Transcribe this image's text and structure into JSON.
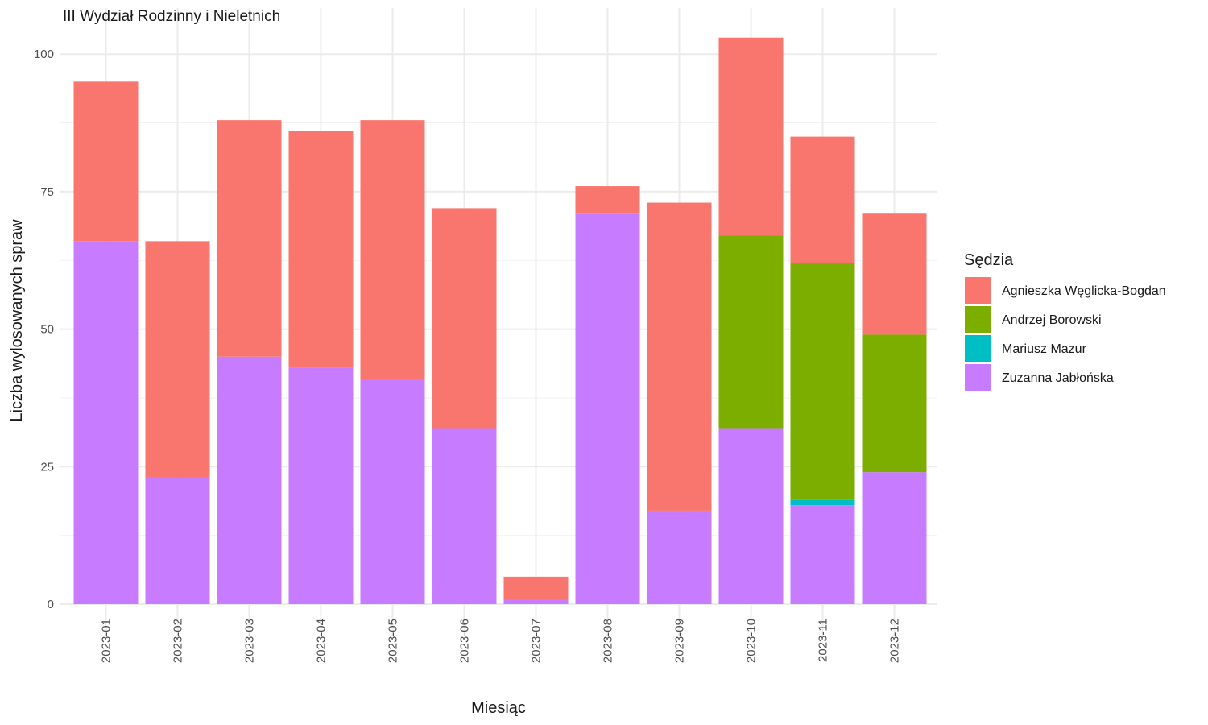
{
  "chart_data": {
    "type": "bar",
    "stacked": true,
    "title": "III Wydział Rodzinny i Nieletnich",
    "xlabel": "Miesiąc",
    "ylabel": "Liczba wylosowanych spraw",
    "ylim": [
      0,
      105
    ],
    "yticks": [
      0,
      25,
      50,
      75,
      100
    ],
    "grid": true,
    "legend_title": "Sędzia",
    "legend_position": "right",
    "categories": [
      "2023-01",
      "2023-02",
      "2023-03",
      "2023-04",
      "2023-05",
      "2023-06",
      "2023-07",
      "2023-08",
      "2023-09",
      "2023-10",
      "2023-11",
      "2023-12"
    ],
    "series": [
      {
        "name": "Zuzanna Jabłońska",
        "color": "#C77CFF",
        "values": [
          66,
          23,
          45,
          43,
          41,
          32,
          1,
          71,
          17,
          32,
          18,
          24
        ]
      },
      {
        "name": "Mariusz Mazur",
        "color": "#00BFC4",
        "values": [
          0,
          0,
          0,
          0,
          0,
          0,
          0,
          0,
          0,
          0,
          1,
          0
        ]
      },
      {
        "name": "Andrzej Borowski",
        "color": "#7CAE00",
        "values": [
          0,
          0,
          0,
          0,
          0,
          0,
          0,
          0,
          0,
          35,
          43,
          25
        ]
      },
      {
        "name": "Agnieszka Węglicka-Bogdan",
        "color": "#F8766D",
        "values": [
          29,
          43,
          43,
          43,
          47,
          40,
          4,
          5,
          56,
          36,
          23,
          22
        ]
      }
    ],
    "legend_order": [
      "Agnieszka Węglicka-Bogdan",
      "Andrzej Borowski",
      "Mariusz Mazur",
      "Zuzanna Jabłońska"
    ]
  }
}
